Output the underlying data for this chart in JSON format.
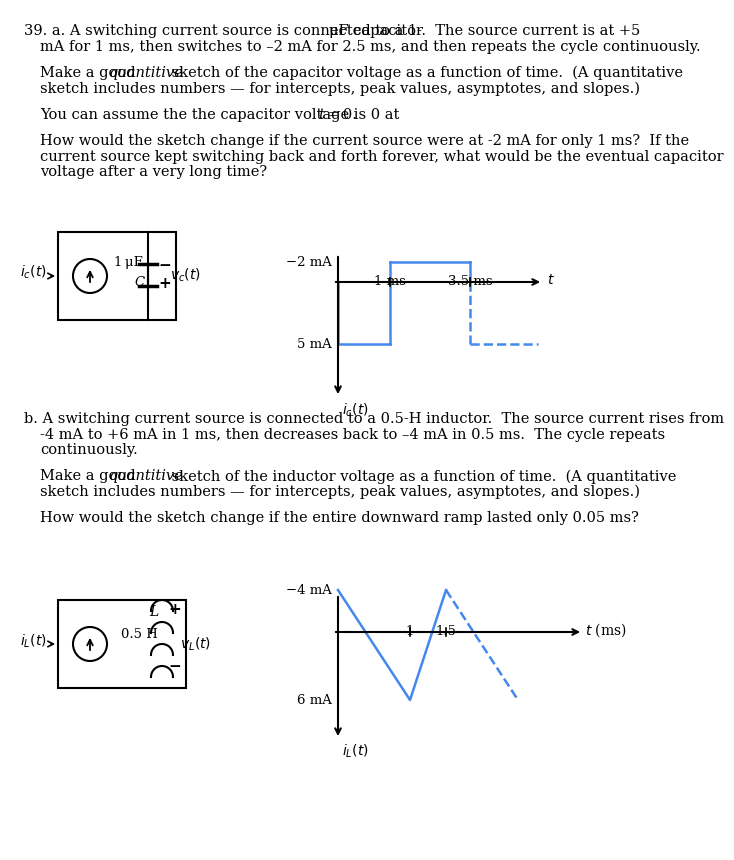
{
  "bg_color": "#ffffff",
  "text_color": "#000000",
  "font_size_body": 10.5,
  "font_size_small": 9.5,
  "blue": "#4488ee",
  "lh": 15.5,
  "part_a_line1a": "39. a. A switching current source is connected to a 1-",
  "part_a_line1b": "μF capacitor.  The source current is at +5",
  "part_a_line2": "mA for 1 ms, then switches to –2 mA for 2.5 ms, and then repeats the cycle continuously.",
  "part_a_line3a": "Make a good ",
  "part_a_line3b": "quantitive",
  "part_a_line3c": " sketch of the capacitor voltage as a function of time.  (A quantitative",
  "part_a_line4": "sketch includes numbers — for intercepts, peak values, asymptotes, and slopes.)",
  "part_a_line5a": "You can assume the the capacitor voltage is 0 at ",
  "part_a_line5b": "t",
  "part_a_line5c": " = 0.",
  "part_a_line6": "How would the sketch change if the current source were at -2 mA for only 1 ms?  If the",
  "part_a_line7": "current source kept switching back and forth forever, what would be the eventual capacitor",
  "part_a_line8": "voltage after a very long time?",
  "graph1_ylabel": "$i_c(t)$",
  "graph1_xlabel": "$t$",
  "graph1_y_pos": "5 mA",
  "graph1_y_neg": "−2 mA",
  "graph1_x1": "1 ms",
  "graph1_x2": "3.5 ms",
  "part_b_line1": "b. A switching current source is connected to a 0.5-H inductor.  The source current rises from",
  "part_b_line2": "-4 mA to +6 mA in 1 ms, then decreases back to –4 mA in 0.5 ms.  The cycle repeats",
  "part_b_line3": "continuously.",
  "part_b_line4a": "Make a good ",
  "part_b_line4b": "quantitive",
  "part_b_line4c": " sketch of the inductor voltage as a function of time.  (A quantitative",
  "part_b_line5": "sketch includes numbers — for intercepts, peak values, asymptotes, and slopes.)",
  "part_b_line6": "How would the sketch change if the entire downward ramp lasted only 0.05 ms?",
  "graph2_ylabel": "$i_L(t)$",
  "graph2_xlabel": "$t$ (ms)",
  "graph2_y_pos": "6 mA",
  "graph2_y_neg": "−4 mA",
  "graph2_x1": "1",
  "graph2_x2": "1.5"
}
